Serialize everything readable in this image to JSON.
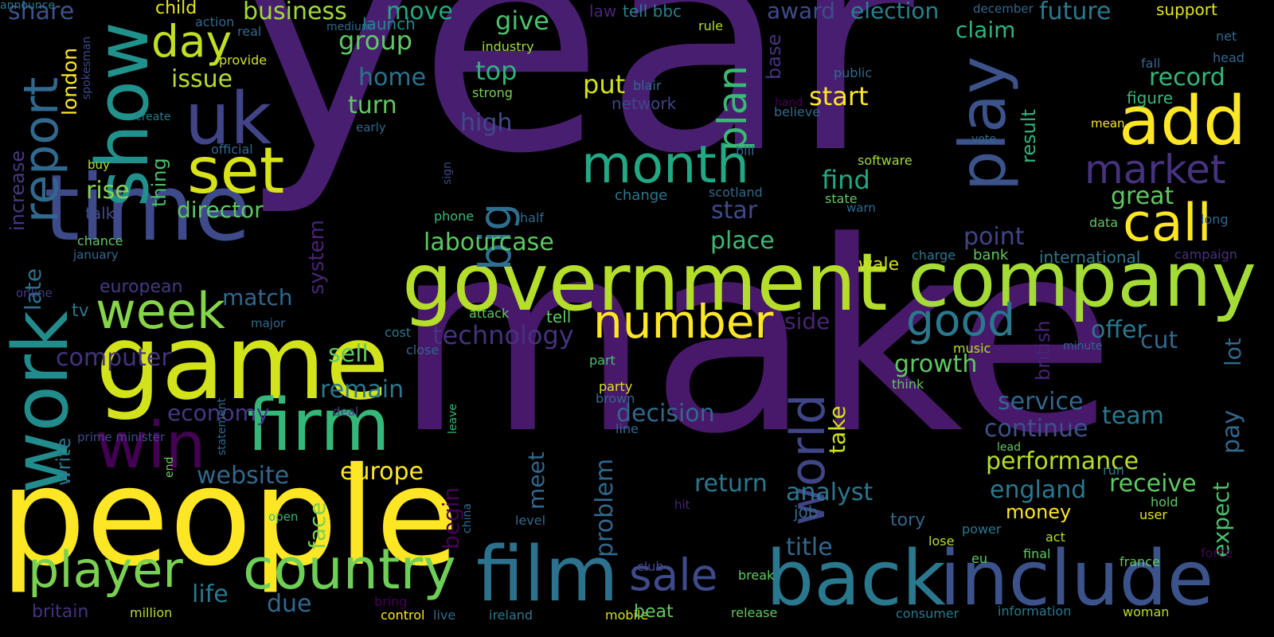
{
  "words": [
    {
      "text": "year",
      "color": "#481f70"
    },
    {
      "text": "make",
      "color": "#48186a"
    },
    {
      "text": "people",
      "color": "#fde725"
    },
    {
      "text": "game",
      "color": "#d2e21b"
    },
    {
      "text": "time",
      "color": "#3e4a89"
    },
    {
      "text": "government",
      "color": "#b5de2b"
    },
    {
      "text": "company",
      "color": "#a5db36"
    },
    {
      "text": "back",
      "color": "#2a788e"
    },
    {
      "text": "include",
      "color": "#3b528b"
    },
    {
      "text": "film",
      "color": "#2c728e"
    },
    {
      "text": "firm",
      "color": "#35b779"
    },
    {
      "text": "country",
      "color": "#6ece58"
    },
    {
      "text": "win",
      "color": "#440154"
    },
    {
      "text": "work",
      "color": "#228c8d"
    },
    {
      "text": "uk",
      "color": "#414487"
    },
    {
      "text": "show",
      "color": "#21918c"
    },
    {
      "text": "set",
      "color": "#d8e219"
    },
    {
      "text": "add",
      "color": "#fde725"
    },
    {
      "text": "call",
      "color": "#fde725"
    },
    {
      "text": "month",
      "color": "#22a884"
    },
    {
      "text": "number",
      "color": "#fde725"
    },
    {
      "text": "play",
      "color": "#3b528b"
    },
    {
      "text": "player",
      "color": "#7ad151"
    },
    {
      "text": "week",
      "color": "#86d549"
    },
    {
      "text": "day",
      "color": "#c2df23"
    },
    {
      "text": "good",
      "color": "#2a788e"
    },
    {
      "text": "market",
      "color": "#46327e"
    },
    {
      "text": "world",
      "color": "#404588"
    },
    {
      "text": "big",
      "color": "#2d708e"
    },
    {
      "text": "sale",
      "color": "#3e4a89"
    },
    {
      "text": "report",
      "color": "#31688e"
    },
    {
      "text": "plan",
      "color": "#3aba76"
    },
    {
      "text": "share",
      "color": "#3b528b"
    },
    {
      "text": "business",
      "color": "#a0da39"
    },
    {
      "text": "move",
      "color": "#22a884"
    },
    {
      "text": "child",
      "color": "#e5e419"
    },
    {
      "text": "action",
      "color": "#31688e"
    },
    {
      "text": "launch",
      "color": "#23898e"
    },
    {
      "text": "medium",
      "color": "#31688e"
    },
    {
      "text": "law",
      "color": "#482475"
    },
    {
      "text": "tell bbc",
      "color": "#277f8e"
    },
    {
      "text": "award",
      "color": "#3e4c8a"
    },
    {
      "text": "election",
      "color": "#26828e"
    },
    {
      "text": "december",
      "color": "#31688e"
    },
    {
      "text": "future",
      "color": "#2a788e"
    },
    {
      "text": "support",
      "color": "#e5e419"
    },
    {
      "text": "net",
      "color": "#31688e"
    },
    {
      "text": "head",
      "color": "#31688e"
    },
    {
      "text": "london",
      "color": "#fde725"
    },
    {
      "text": "spokesman",
      "color": "#3e4a89"
    },
    {
      "text": "real",
      "color": "#31688e"
    },
    {
      "text": "provide",
      "color": "#d2e21b"
    },
    {
      "text": "issue",
      "color": "#b5de2b"
    },
    {
      "text": "group",
      "color": "#5ec962"
    },
    {
      "text": "give",
      "color": "#4ac16d"
    },
    {
      "text": "industry",
      "color": "#a0da39"
    },
    {
      "text": "rule",
      "color": "#b5de2b"
    },
    {
      "text": "base",
      "color": "#46327e"
    },
    {
      "text": "public",
      "color": "#31688e"
    },
    {
      "text": "fall",
      "color": "#31688e"
    },
    {
      "text": "record",
      "color": "#35b779"
    },
    {
      "text": "claim",
      "color": "#2fb47c"
    },
    {
      "text": "home",
      "color": "#2c728e"
    },
    {
      "text": "top",
      "color": "#2fb47c"
    },
    {
      "text": "strong",
      "color": "#7ad151"
    },
    {
      "text": "blair",
      "color": "#31688e"
    },
    {
      "text": "put",
      "color": "#d2e21b"
    },
    {
      "text": "network",
      "color": "#414487"
    },
    {
      "text": "start",
      "color": "#fde725"
    },
    {
      "text": "hand",
      "color": "#440154"
    },
    {
      "text": "believe",
      "color": "#31688e"
    },
    {
      "text": "result",
      "color": "#2fb47c"
    },
    {
      "text": "figure",
      "color": "#35b779"
    },
    {
      "text": "mean",
      "color": "#fde725"
    },
    {
      "text": "increase",
      "color": "#443983"
    },
    {
      "text": "create",
      "color": "#2a788e"
    },
    {
      "text": "turn",
      "color": "#5ec962"
    },
    {
      "text": "high",
      "color": "#3e4a89"
    },
    {
      "text": "early",
      "color": "#31688e"
    },
    {
      "text": "thing",
      "color": "#4ac16d"
    },
    {
      "text": "official",
      "color": "#31688e"
    },
    {
      "text": "bill",
      "color": "#31688e"
    },
    {
      "text": "software",
      "color": "#a0da39"
    },
    {
      "text": "vote",
      "color": "#31688e"
    },
    {
      "text": "buy",
      "color": "#b5de2b"
    },
    {
      "text": "sign",
      "color": "#3e4a89"
    },
    {
      "text": "rise",
      "color": "#86d549"
    },
    {
      "text": "director",
      "color": "#5ec962"
    },
    {
      "text": "change",
      "color": "#2a788e"
    },
    {
      "text": "scotland",
      "color": "#31688e"
    },
    {
      "text": "find",
      "color": "#22a884"
    },
    {
      "text": "state",
      "color": "#5ec962"
    },
    {
      "text": "warn",
      "color": "#31688e"
    },
    {
      "text": "great",
      "color": "#5ec962"
    },
    {
      "text": "long",
      "color": "#31688e"
    },
    {
      "text": "talk",
      "color": "#3e4a89"
    },
    {
      "text": "phone",
      "color": "#3aba76"
    },
    {
      "text": "half",
      "color": "#31688e"
    },
    {
      "text": "star",
      "color": "#3e4a89"
    },
    {
      "text": "data",
      "color": "#5ec962"
    },
    {
      "text": "late",
      "color": "#2c728e"
    },
    {
      "text": "chance",
      "color": "#5ec962"
    },
    {
      "text": "january",
      "color": "#31688e"
    },
    {
      "text": "system",
      "color": "#482475"
    },
    {
      "text": "labourcase",
      "color": "#5ec962"
    },
    {
      "text": "place",
      "color": "#3aba76"
    },
    {
      "text": "point",
      "color": "#414487"
    },
    {
      "text": "international",
      "color": "#2a788e"
    },
    {
      "text": "campaign",
      "color": "#46327e"
    },
    {
      "text": "online",
      "color": "#443983"
    },
    {
      "text": "european",
      "color": "#443983"
    },
    {
      "text": "match",
      "color": "#31688e"
    },
    {
      "text": "wale",
      "color": "#d2e21b"
    },
    {
      "text": "charge",
      "color": "#2a788e"
    },
    {
      "text": "bank",
      "color": "#5ec962"
    },
    {
      "text": "tv",
      "color": "#2a788e"
    },
    {
      "text": "major",
      "color": "#31688e"
    },
    {
      "text": "attack",
      "color": "#5ec962"
    },
    {
      "text": "tell",
      "color": "#5ec962"
    },
    {
      "text": "technology",
      "color": "#46327e"
    },
    {
      "text": "side",
      "color": "#482475"
    },
    {
      "text": "offer",
      "color": "#2a788e"
    },
    {
      "text": "lot",
      "color": "#31688e"
    },
    {
      "text": "cost",
      "color": "#2a788e"
    },
    {
      "text": "close",
      "color": "#31688e"
    },
    {
      "text": "cut",
      "color": "#31688e"
    },
    {
      "text": "music",
      "color": "#b5de2b"
    },
    {
      "text": "minute",
      "color": "#31688e"
    },
    {
      "text": "computer",
      "color": "#46327e"
    },
    {
      "text": "sell",
      "color": "#5ec962"
    },
    {
      "text": "part",
      "color": "#4ac16d"
    },
    {
      "text": "growth",
      "color": "#5ec962"
    },
    {
      "text": "take",
      "color": "#d2e21b"
    },
    {
      "text": "british",
      "color": "#482475"
    },
    {
      "text": "pay",
      "color": "#31688e"
    },
    {
      "text": "remain",
      "color": "#2a788e"
    },
    {
      "text": "party",
      "color": "#d8e219"
    },
    {
      "text": "brown",
      "color": "#31688e"
    },
    {
      "text": "think",
      "color": "#5ec962"
    },
    {
      "text": "write",
      "color": "#2a788e"
    },
    {
      "text": "economy",
      "color": "#443983"
    },
    {
      "text": "deal",
      "color": "#414487"
    },
    {
      "text": "decision",
      "color": "#31688e"
    },
    {
      "text": "service",
      "color": "#31688e"
    },
    {
      "text": "team",
      "color": "#2a788e"
    },
    {
      "text": "leave",
      "color": "#35b779"
    },
    {
      "text": "line",
      "color": "#31688e"
    },
    {
      "text": "prime minister",
      "color": "#3e4a89"
    },
    {
      "text": "statement",
      "color": "#31688e"
    },
    {
      "text": "meet",
      "color": "#31688e"
    },
    {
      "text": "problem",
      "color": "#31688e"
    },
    {
      "text": "continue",
      "color": "#3b528b"
    },
    {
      "text": "lead",
      "color": "#5ec962"
    },
    {
      "text": "website",
      "color": "#31688e"
    },
    {
      "text": "face",
      "color": "#7ad151"
    },
    {
      "text": "europe",
      "color": "#fde725"
    },
    {
      "text": "end",
      "color": "#6ece58"
    },
    {
      "text": "china",
      "color": "#31688e"
    },
    {
      "text": "performance",
      "color": "#b5de2b"
    },
    {
      "text": "run",
      "color": "#2a788e"
    },
    {
      "text": "receive",
      "color": "#5ec962"
    },
    {
      "text": "expect",
      "color": "#4ac16d"
    },
    {
      "text": "return",
      "color": "#2a788e"
    },
    {
      "text": "hit",
      "color": "#482475"
    },
    {
      "text": "begin",
      "color": "#440154"
    },
    {
      "text": "england",
      "color": "#2a788e"
    },
    {
      "text": "hold",
      "color": "#5ec962"
    },
    {
      "text": "analyst",
      "color": "#2a788e"
    },
    {
      "text": "open",
      "color": "#35b779"
    },
    {
      "text": "job",
      "color": "#31688e"
    },
    {
      "text": "money",
      "color": "#fde725"
    },
    {
      "text": "user",
      "color": "#e5e419"
    },
    {
      "text": "level",
      "color": "#31688e"
    },
    {
      "text": "tory",
      "color": "#31688e"
    },
    {
      "text": "power",
      "color": "#2a788e"
    },
    {
      "text": "title",
      "color": "#31688e"
    },
    {
      "text": "lose",
      "color": "#b5de2b"
    },
    {
      "text": "act",
      "color": "#b5de2b"
    },
    {
      "text": "final",
      "color": "#5ec962"
    },
    {
      "text": "force",
      "color": "#440154"
    },
    {
      "text": "eu",
      "color": "#5ec962"
    },
    {
      "text": "france",
      "color": "#5ec962"
    },
    {
      "text": "life",
      "color": "#2a788e"
    },
    {
      "text": "club",
      "color": "#414487"
    },
    {
      "text": "break",
      "color": "#5ec962"
    },
    {
      "text": "due",
      "color": "#31688e"
    },
    {
      "text": "britain",
      "color": "#46327e"
    },
    {
      "text": "million",
      "color": "#b5de2b"
    },
    {
      "text": "bring",
      "color": "#440154"
    },
    {
      "text": "control",
      "color": "#fde725"
    },
    {
      "text": "live",
      "color": "#31688e"
    },
    {
      "text": "ireland",
      "color": "#2a788e"
    },
    {
      "text": "mobile",
      "color": "#d2e21b"
    },
    {
      "text": "beat",
      "color": "#5ec962"
    },
    {
      "text": "release",
      "color": "#5ec962"
    },
    {
      "text": "consumer",
      "color": "#2a788e"
    },
    {
      "text": "information",
      "color": "#2a788e"
    },
    {
      "text": "woman",
      "color": "#b5de2b"
    },
    {
      "text": "announce",
      "color": "#2a788e"
    }
  ]
}
